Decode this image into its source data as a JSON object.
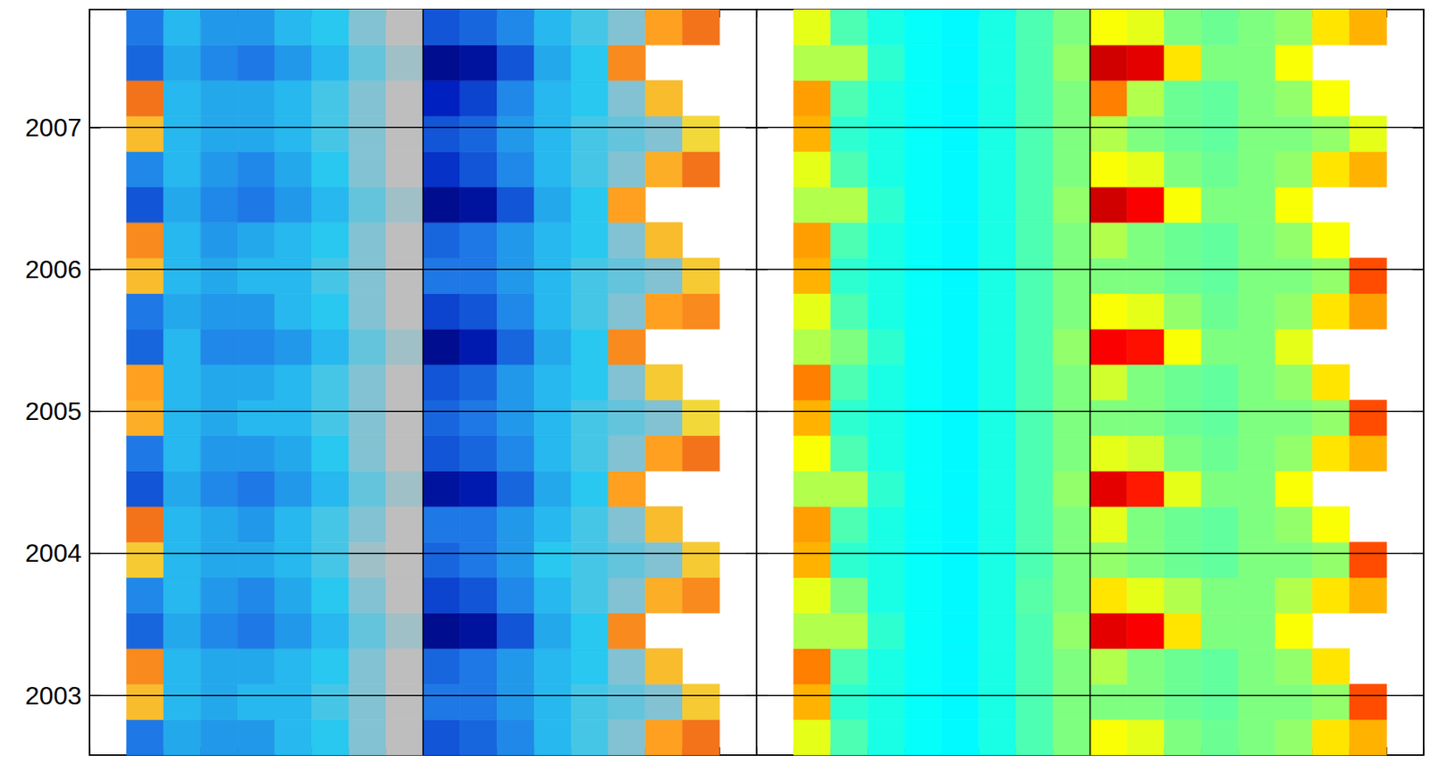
{
  "chart_data": [
    {
      "type": "heatmap",
      "x": [
        -85,
        -75,
        -65,
        -55,
        -45,
        -35,
        -25,
        -15,
        -5,
        5,
        15,
        25,
        35,
        45,
        55,
        65,
        75,
        85
      ],
      "y": [
        2002.705,
        2002.955,
        2003.205,
        2003.455,
        2003.705,
        2003.955,
        2004.205,
        2004.455,
        2004.705,
        2004.955,
        2005.205,
        2005.455,
        2005.705,
        2005.955,
        2006.205,
        2006.455,
        2006.705,
        2006.955,
        2007.205,
        2007.455,
        2007.705
      ],
      "cells": [
        [
          null,
          -0.5,
          -0.35,
          -0.4,
          -0.4,
          -0.3,
          -0.25,
          -0.1,
          0,
          -0.6,
          -0.55,
          -0.45,
          -0.3,
          -0.2,
          -0.1,
          0.5,
          0.6,
          null
        ],
        [
          null,
          0.4,
          -0.3,
          -0.35,
          -0.3,
          -0.3,
          -0.2,
          -0.1,
          0,
          -0.5,
          -0.5,
          -0.4,
          -0.3,
          -0.2,
          -0.15,
          -0.1,
          0.35,
          null
        ],
        [
          null,
          0.55,
          -0.3,
          -0.35,
          -0.35,
          -0.3,
          -0.25,
          -0.1,
          0,
          -0.55,
          -0.5,
          -0.4,
          -0.3,
          -0.25,
          -0.1,
          0.4,
          null,
          null
        ],
        [
          null,
          -0.55,
          -0.35,
          -0.45,
          -0.5,
          -0.4,
          -0.3,
          -0.15,
          -0.05,
          -0.9,
          -0.85,
          -0.6,
          -0.35,
          -0.25,
          0.55,
          null,
          null,
          null
        ],
        [
          null,
          -0.45,
          -0.3,
          -0.4,
          -0.45,
          -0.35,
          -0.25,
          -0.1,
          0,
          -0.65,
          -0.6,
          -0.45,
          -0.3,
          -0.2,
          -0.1,
          0.45,
          0.55,
          null
        ],
        [
          null,
          0.35,
          -0.3,
          -0.35,
          -0.35,
          -0.3,
          -0.2,
          -0.05,
          0,
          -0.55,
          -0.5,
          -0.4,
          -0.25,
          -0.2,
          -0.15,
          -0.1,
          0.35,
          null
        ],
        [
          null,
          0.6,
          -0.3,
          -0.35,
          -0.4,
          -0.3,
          -0.2,
          -0.1,
          0,
          -0.5,
          -0.5,
          -0.4,
          -0.3,
          -0.2,
          -0.1,
          0.4,
          null,
          null
        ],
        [
          null,
          -0.6,
          -0.35,
          -0.45,
          -0.5,
          -0.4,
          -0.3,
          -0.15,
          -0.05,
          -0.85,
          -0.8,
          -0.55,
          -0.35,
          -0.25,
          0.5,
          null,
          null,
          null
        ],
        [
          null,
          -0.5,
          -0.3,
          -0.4,
          -0.4,
          -0.35,
          -0.25,
          -0.1,
          0,
          -0.6,
          -0.55,
          -0.45,
          -0.3,
          -0.2,
          -0.1,
          0.5,
          0.6,
          null
        ],
        [
          null,
          0.45,
          -0.3,
          -0.35,
          -0.3,
          -0.3,
          -0.2,
          -0.1,
          0,
          -0.55,
          -0.5,
          -0.4,
          -0.3,
          -0.2,
          -0.15,
          -0.1,
          0.3,
          null
        ],
        [
          null,
          0.5,
          -0.3,
          -0.35,
          -0.35,
          -0.3,
          -0.2,
          -0.1,
          0,
          -0.6,
          -0.55,
          -0.4,
          -0.3,
          -0.25,
          -0.1,
          0.35,
          null,
          null
        ],
        [
          null,
          -0.55,
          -0.3,
          -0.45,
          -0.45,
          -0.4,
          -0.3,
          -0.15,
          -0.05,
          -0.9,
          -0.8,
          -0.55,
          -0.35,
          -0.25,
          0.55,
          null,
          null,
          null
        ],
        [
          null,
          -0.5,
          -0.35,
          -0.4,
          -0.4,
          -0.3,
          -0.25,
          -0.1,
          0,
          -0.65,
          -0.6,
          -0.45,
          -0.3,
          -0.2,
          -0.1,
          0.5,
          0.55,
          null
        ],
        [
          null,
          0.4,
          -0.3,
          -0.35,
          -0.3,
          -0.3,
          -0.2,
          -0.1,
          0,
          -0.5,
          -0.5,
          -0.4,
          -0.3,
          -0.2,
          -0.15,
          -0.1,
          0.35,
          null
        ],
        [
          null,
          0.55,
          -0.3,
          -0.4,
          -0.35,
          -0.3,
          -0.25,
          -0.1,
          0,
          -0.55,
          -0.5,
          -0.4,
          -0.3,
          -0.25,
          -0.1,
          0.4,
          null,
          null
        ],
        [
          null,
          -0.6,
          -0.35,
          -0.45,
          -0.5,
          -0.4,
          -0.3,
          -0.15,
          -0.05,
          -0.9,
          -0.85,
          -0.6,
          -0.35,
          -0.25,
          0.5,
          null,
          null,
          null
        ],
        [
          null,
          -0.45,
          -0.3,
          -0.4,
          -0.45,
          -0.35,
          -0.25,
          -0.1,
          0,
          -0.7,
          -0.6,
          -0.45,
          -0.3,
          -0.2,
          -0.1,
          0.45,
          0.6,
          null
        ],
        [
          null,
          0.4,
          -0.3,
          -0.35,
          -0.35,
          -0.3,
          -0.2,
          -0.1,
          0,
          -0.6,
          -0.55,
          -0.4,
          -0.3,
          -0.2,
          -0.15,
          -0.1,
          0.3,
          null
        ],
        [
          null,
          0.6,
          -0.3,
          -0.35,
          -0.35,
          -0.3,
          -0.2,
          -0.1,
          0,
          -0.75,
          -0.65,
          -0.45,
          -0.3,
          -0.25,
          -0.1,
          0.4,
          null,
          null
        ],
        [
          null,
          -0.55,
          -0.35,
          -0.45,
          -0.5,
          -0.4,
          -0.3,
          -0.15,
          -0.05,
          -0.9,
          -0.85,
          -0.6,
          -0.35,
          -0.25,
          0.55,
          null,
          null,
          null
        ],
        [
          null,
          -0.5,
          -0.3,
          -0.4,
          -0.4,
          -0.3,
          -0.25,
          -0.1,
          0,
          -0.6,
          -0.55,
          -0.45,
          -0.3,
          -0.2,
          -0.1,
          0.5,
          0.6,
          null
        ]
      ],
      "color_range": [
        -1,
        1
      ],
      "colors": [
        "#00006e",
        "#0020c0",
        "#1e78e6",
        "#28c8f0",
        "#bebebe",
        "#f0e640",
        "#ffa020",
        "#e03010",
        "#800000"
      ],
      "xlim": [
        -90,
        90
      ],
      "xticks": [
        -90,
        -80,
        -70,
        -60,
        -50,
        -40,
        -30,
        -20,
        -10,
        0,
        10,
        20,
        30,
        40,
        50,
        60,
        70,
        80,
        90
      ],
      "ylim": [
        2002.58,
        2007.83
      ],
      "yticks": [
        2003,
        2004,
        2005,
        2006,
        2007
      ],
      "grid": true,
      "vlines": [
        0
      ],
      "tick_labels": "y"
    },
    {
      "type": "heatmap",
      "x": [
        -85,
        -75,
        -65,
        -55,
        -45,
        -35,
        -25,
        -15,
        -5,
        5,
        15,
        25,
        35,
        45,
        55,
        65,
        75,
        85
      ],
      "y": [
        2002.705,
        2002.955,
        2003.205,
        2003.455,
        2003.705,
        2003.955,
        2004.205,
        2004.455,
        2004.705,
        2004.955,
        2005.205,
        2005.455,
        2005.705,
        2005.955,
        2006.205,
        2006.455,
        2006.705,
        2006.955,
        2007.205,
        2007.455,
        2007.705
      ],
      "cells": [
        [
          null,
          0.6,
          0.45,
          0.4,
          0.38,
          0.37,
          0.4,
          0.45,
          0.5,
          0.62,
          0.6,
          0.5,
          0.48,
          0.5,
          0.52,
          0.65,
          0.7,
          null
        ],
        [
          null,
          0.7,
          0.42,
          0.4,
          0.38,
          0.37,
          0.4,
          0.45,
          0.5,
          0.5,
          0.5,
          0.48,
          0.47,
          0.5,
          0.5,
          0.52,
          0.8,
          null
        ],
        [
          null,
          0.75,
          0.45,
          0.4,
          0.38,
          0.37,
          0.4,
          0.45,
          0.5,
          0.55,
          0.5,
          0.48,
          0.47,
          0.5,
          0.52,
          0.65,
          null,
          null
        ],
        [
          null,
          0.55,
          0.55,
          0.42,
          0.38,
          0.37,
          0.4,
          0.45,
          0.52,
          0.9,
          0.88,
          0.65,
          0.5,
          0.5,
          0.62,
          null,
          null,
          null
        ],
        [
          null,
          0.6,
          0.5,
          0.4,
          0.38,
          0.37,
          0.4,
          0.46,
          0.5,
          0.65,
          0.6,
          0.55,
          0.5,
          0.5,
          0.55,
          0.65,
          0.7,
          null
        ],
        [
          null,
          0.7,
          0.42,
          0.4,
          0.38,
          0.37,
          0.4,
          0.45,
          0.5,
          0.52,
          0.5,
          0.48,
          0.47,
          0.5,
          0.5,
          0.52,
          0.8,
          null
        ],
        [
          null,
          0.72,
          0.45,
          0.4,
          0.38,
          0.37,
          0.4,
          0.45,
          0.5,
          0.6,
          0.5,
          0.48,
          0.47,
          0.5,
          0.52,
          0.62,
          null,
          null
        ],
        [
          null,
          0.55,
          0.55,
          0.42,
          0.38,
          0.37,
          0.4,
          0.45,
          0.52,
          0.9,
          0.85,
          0.6,
          0.5,
          0.5,
          0.62,
          null,
          null,
          null
        ],
        [
          null,
          0.62,
          0.45,
          0.4,
          0.38,
          0.37,
          0.4,
          0.45,
          0.5,
          0.6,
          0.58,
          0.5,
          0.48,
          0.5,
          0.52,
          0.65,
          0.7,
          null
        ],
        [
          null,
          0.7,
          0.42,
          0.4,
          0.38,
          0.37,
          0.4,
          0.45,
          0.5,
          0.5,
          0.5,
          0.48,
          0.47,
          0.5,
          0.5,
          0.52,
          0.8,
          null
        ],
        [
          null,
          0.75,
          0.45,
          0.4,
          0.38,
          0.37,
          0.4,
          0.45,
          0.5,
          0.58,
          0.5,
          0.48,
          0.47,
          0.5,
          0.52,
          0.65,
          null,
          null
        ],
        [
          null,
          0.55,
          0.5,
          0.42,
          0.38,
          0.37,
          0.4,
          0.45,
          0.52,
          0.88,
          0.86,
          0.62,
          0.5,
          0.5,
          0.6,
          null,
          null,
          null
        ],
        [
          null,
          0.6,
          0.45,
          0.4,
          0.38,
          0.37,
          0.4,
          0.45,
          0.5,
          0.62,
          0.6,
          0.52,
          0.48,
          0.5,
          0.52,
          0.65,
          0.72,
          null
        ],
        [
          null,
          0.7,
          0.42,
          0.4,
          0.38,
          0.37,
          0.4,
          0.45,
          0.5,
          0.5,
          0.5,
          0.48,
          0.47,
          0.5,
          0.5,
          0.52,
          0.8,
          null
        ],
        [
          null,
          0.72,
          0.45,
          0.4,
          0.38,
          0.37,
          0.4,
          0.45,
          0.5,
          0.55,
          0.5,
          0.48,
          0.47,
          0.5,
          0.52,
          0.62,
          null,
          null
        ],
        [
          null,
          0.55,
          0.55,
          0.42,
          0.38,
          0.37,
          0.4,
          0.45,
          0.52,
          0.92,
          0.88,
          0.62,
          0.5,
          0.5,
          0.62,
          null,
          null,
          null
        ],
        [
          null,
          0.6,
          0.45,
          0.4,
          0.38,
          0.37,
          0.4,
          0.45,
          0.5,
          0.62,
          0.6,
          0.5,
          0.48,
          0.5,
          0.52,
          0.65,
          0.7,
          null
        ],
        [
          null,
          0.7,
          0.42,
          0.4,
          0.38,
          0.37,
          0.4,
          0.45,
          0.5,
          0.55,
          0.5,
          0.48,
          0.47,
          0.5,
          0.5,
          0.52,
          0.6,
          null
        ],
        [
          null,
          0.72,
          0.45,
          0.4,
          0.38,
          0.37,
          0.4,
          0.45,
          0.5,
          0.75,
          0.55,
          0.48,
          0.47,
          0.5,
          0.52,
          0.62,
          null,
          null
        ],
        [
          null,
          0.55,
          0.55,
          0.42,
          0.38,
          0.37,
          0.4,
          0.45,
          0.52,
          0.92,
          0.9,
          0.65,
          0.5,
          0.5,
          0.62,
          null,
          null,
          null
        ],
        [
          null,
          0.6,
          0.45,
          0.4,
          0.38,
          0.37,
          0.4,
          0.45,
          0.5,
          0.62,
          0.6,
          0.5,
          0.48,
          0.5,
          0.52,
          0.65,
          0.7,
          null
        ]
      ],
      "color_range": [
        0,
        1
      ],
      "colors": [
        "#00007f",
        "#0000ff",
        "#007fff",
        "#00ffff",
        "#7fff7f",
        "#ffff00",
        "#ff7f00",
        "#ff0000",
        "#7f0000"
      ],
      "xlim": [
        -90,
        90
      ],
      "xticks": [
        -90,
        -80,
        -70,
        -60,
        -50,
        -40,
        -30,
        -20,
        -10,
        0,
        10,
        20,
        30,
        40,
        50,
        60,
        70,
        80,
        90
      ],
      "ylim": [
        2002.58,
        2007.83
      ],
      "yticks": [
        2003,
        2004,
        2005,
        2006,
        2007
      ],
      "grid": true,
      "vlines": [
        0
      ],
      "tick_labels": false
    }
  ]
}
